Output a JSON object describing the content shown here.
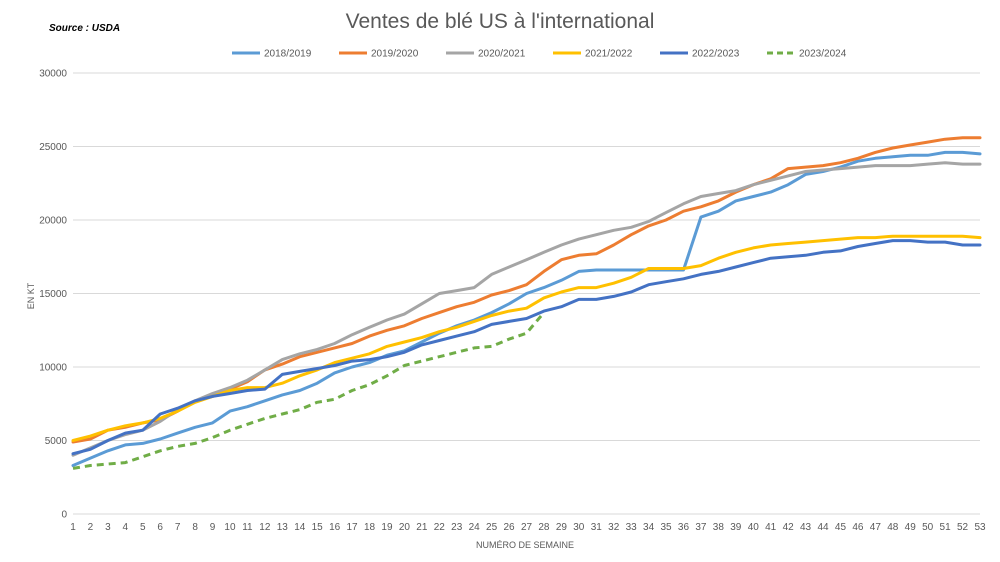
{
  "source": "Source : USDA",
  "chart_data": {
    "type": "line",
    "title": "Ventes de blé US à l'international",
    "xlabel": "NUMÉRO DE SEMAINE",
    "ylabel": "EN KT",
    "x": [
      1,
      2,
      3,
      4,
      5,
      6,
      7,
      8,
      9,
      10,
      11,
      12,
      13,
      14,
      15,
      16,
      17,
      18,
      19,
      20,
      21,
      22,
      23,
      24,
      25,
      26,
      27,
      28,
      29,
      30,
      31,
      32,
      33,
      34,
      35,
      36,
      37,
      38,
      39,
      40,
      41,
      42,
      43,
      44,
      45,
      46,
      47,
      48,
      49,
      50,
      51,
      52,
      53
    ],
    "ylim": [
      0,
      30000
    ],
    "yticks": [
      0,
      5000,
      10000,
      15000,
      20000,
      25000,
      30000
    ],
    "grid": true,
    "legend_position": "top",
    "series": [
      {
        "name": "2018/2019",
        "color": "#5B9BD5",
        "dash": false,
        "values": [
          3300,
          3800,
          4300,
          4700,
          4800,
          5100,
          5500,
          5900,
          6200,
          7000,
          7300,
          7700,
          8100,
          8400,
          8900,
          9600,
          10000,
          10300,
          10800,
          11100,
          11700,
          12300,
          12800,
          13200,
          13700,
          14300,
          15000,
          15400,
          15900,
          16500,
          16600,
          16600,
          16600,
          16600,
          16600,
          16600,
          20200,
          20600,
          21300,
          21600,
          21900,
          22400,
          23100,
          23300,
          23600,
          24000,
          24200,
          24300,
          24400,
          24400,
          24600,
          24600,
          24500
        ]
      },
      {
        "name": "2019/2020",
        "color": "#ED7D31",
        "dash": false,
        "values": [
          4900,
          5100,
          5700,
          5900,
          6200,
          6400,
          7000,
          7700,
          8000,
          8500,
          9000,
          9800,
          10200,
          10700,
          11000,
          11300,
          11600,
          12100,
          12500,
          12800,
          13300,
          13700,
          14100,
          14400,
          14900,
          15200,
          15600,
          16500,
          17300,
          17600,
          17700,
          18300,
          19000,
          19600,
          20000,
          20600,
          20900,
          21300,
          21900,
          22400,
          22800,
          23500,
          23600,
          23700,
          23900,
          24200,
          24600,
          24900,
          25100,
          25300,
          25500,
          25600,
          25600
        ]
      },
      {
        "name": "2020/2021",
        "color": "#A5A5A5",
        "dash": false,
        "values": [
          4000,
          4500,
          5000,
          5400,
          5700,
          6300,
          7100,
          7700,
          8200,
          8600,
          9100,
          9800,
          10500,
          10900,
          11200,
          11600,
          12200,
          12700,
          13200,
          13600,
          14300,
          15000,
          15200,
          15400,
          16300,
          16800,
          17300,
          17800,
          18300,
          18700,
          19000,
          19300,
          19500,
          19900,
          20500,
          21100,
          21600,
          21800,
          22000,
          22400,
          22700,
          23000,
          23300,
          23400,
          23500,
          23600,
          23700,
          23700,
          23700,
          23800,
          23900,
          23800,
          23800
        ]
      },
      {
        "name": "2021/2022",
        "color": "#FFC000",
        "dash": false,
        "values": [
          5000,
          5300,
          5700,
          6000,
          6200,
          6500,
          7000,
          7600,
          8000,
          8400,
          8600,
          8600,
          8900,
          9400,
          9800,
          10300,
          10600,
          10900,
          11400,
          11700,
          12000,
          12400,
          12700,
          13100,
          13500,
          13800,
          14000,
          14700,
          15100,
          15400,
          15400,
          15700,
          16100,
          16700,
          16700,
          16700,
          16900,
          17400,
          17800,
          18100,
          18300,
          18400,
          18500,
          18600,
          18700,
          18800,
          18800,
          18900,
          18900,
          18900,
          18900,
          18900,
          18800
        ]
      },
      {
        "name": "2022/2023",
        "color": "#4472C4",
        "dash": false,
        "values": [
          4100,
          4400,
          5000,
          5500,
          5700,
          6800,
          7200,
          7700,
          8000,
          8200,
          8400,
          8500,
          9500,
          9700,
          9900,
          10100,
          10400,
          10500,
          10700,
          11000,
          11500,
          11800,
          12100,
          12400,
          12900,
          13100,
          13300,
          13800,
          14100,
          14600,
          14600,
          14800,
          15100,
          15600,
          15800,
          16000,
          16300,
          16500,
          16800,
          17100,
          17400,
          17500,
          17600,
          17800,
          17900,
          18200,
          18400,
          18600,
          18600,
          18500,
          18500,
          18300,
          18300
        ]
      },
      {
        "name": "2023/2024",
        "color": "#70AD47",
        "dash": true,
        "values": [
          3100,
          3300,
          3400,
          3500,
          3900,
          4300,
          4600,
          4800,
          5200,
          5700,
          6100,
          6500,
          6800,
          7100,
          7600,
          7800,
          8400,
          8800,
          9400,
          10100,
          10400,
          10700,
          11000,
          11300,
          11400,
          11900,
          12300,
          13700,
          null,
          null,
          null,
          null,
          null,
          null,
          null,
          null,
          null,
          null,
          null,
          null,
          null,
          null,
          null,
          null,
          null,
          null,
          null,
          null,
          null,
          null,
          null,
          null,
          null
        ]
      }
    ]
  }
}
